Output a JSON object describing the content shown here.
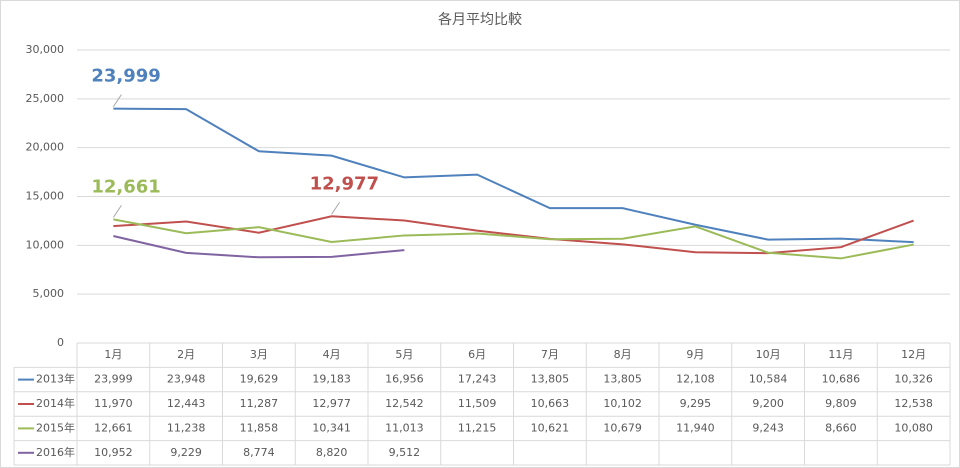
{
  "chart_data": {
    "type": "line",
    "title": "各月平均比較",
    "categories": [
      "1月",
      "2月",
      "3月",
      "4月",
      "5月",
      "6月",
      "7月",
      "8月",
      "9月",
      "10月",
      "11月",
      "12月"
    ],
    "series": [
      {
        "name": "2013年",
        "color": "#4f81bd",
        "values": [
          23999,
          23948,
          19629,
          19183,
          16956,
          17243,
          13805,
          13805,
          12108,
          10584,
          10686,
          10326
        ],
        "value_labels": [
          "23,999",
          "23,948",
          "19,629",
          "19,183",
          "16,956",
          "17,243",
          "13,805",
          "13,805",
          "12,108",
          "10,584",
          "10,686",
          "10,326"
        ]
      },
      {
        "name": "2014年",
        "color": "#c0504d",
        "values": [
          11970,
          12443,
          11287,
          12977,
          12542,
          11509,
          10663,
          10102,
          9295,
          9200,
          9809,
          12538
        ],
        "value_labels": [
          "11,970",
          "12,443",
          "11,287",
          "12,977",
          "12,542",
          "11,509",
          "10,663",
          "10,102",
          "9,295",
          "9,200",
          "9,809",
          "12,538"
        ]
      },
      {
        "name": "2015年",
        "color": "#9bbb59",
        "values": [
          12661,
          11238,
          11858,
          10341,
          11013,
          11215,
          10621,
          10679,
          11940,
          9243,
          8660,
          10080
        ],
        "value_labels": [
          "12,661",
          "11,238",
          "11,858",
          "10,341",
          "11,013",
          "11,215",
          "10,621",
          "10,679",
          "11,940",
          "9,243",
          "8,660",
          "10,080"
        ]
      },
      {
        "name": "2016年",
        "color": "#8064a2",
        "values": [
          10952,
          9229,
          8774,
          8820,
          9512,
          null,
          null,
          null,
          null,
          null,
          null,
          null
        ],
        "value_labels": [
          "10,952",
          "9,229",
          "8,774",
          "8,820",
          "9,512",
          null,
          null,
          null,
          null,
          null,
          null,
          null
        ]
      }
    ],
    "annotations": [
      {
        "label": "23,999",
        "series": "2013年",
        "category": "1月"
      },
      {
        "label": "12,661",
        "series": "2015年",
        "category": "1月"
      },
      {
        "label": "12,977",
        "series": "2014年",
        "category": "4月"
      }
    ],
    "ylim": [
      0,
      30000
    ],
    "yticks": [
      0,
      {
        "value": 5000,
        "label": "5,000"
      },
      {
        "value": 10000,
        "label": "10,000"
      },
      {
        "value": 15000,
        "label": "15,000"
      },
      {
        "value": 20000,
        "label": "20,000"
      },
      {
        "value": 25000,
        "label": "25,000"
      },
      {
        "value": 30000,
        "label": "30,000"
      }
    ],
    "grid": true
  }
}
